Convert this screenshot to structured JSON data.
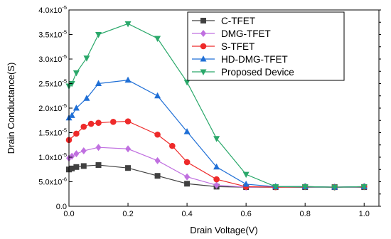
{
  "chart_data": {
    "type": "line",
    "title": "",
    "xlabel": "Drain Voltage(V)",
    "ylabel": "Drain Conductance(S)",
    "xlim": [
      0.0,
      1.05
    ],
    "ylim": [
      0.0,
      4e-05
    ],
    "grid": false,
    "legend_position": "top-right",
    "x_ticks": [
      {
        "value": 0.0,
        "label": "0.0"
      },
      {
        "value": 0.2,
        "label": "0.2"
      },
      {
        "value": 0.4,
        "label": "0.4"
      },
      {
        "value": 0.6,
        "label": "0.6"
      },
      {
        "value": 0.8,
        "label": "0.8"
      },
      {
        "value": 1.0,
        "label": "1.0"
      }
    ],
    "y_ticks": [
      {
        "value": 0.0,
        "mantissa": "0.0",
        "exp": ""
      },
      {
        "value": 5e-06,
        "mantissa": "5.0x10",
        "exp": "-6"
      },
      {
        "value": 1e-05,
        "mantissa": "1.0x10",
        "exp": "-5"
      },
      {
        "value": 1.5e-05,
        "mantissa": "1.5x10",
        "exp": "-5"
      },
      {
        "value": 2e-05,
        "mantissa": "2.0x10",
        "exp": "-5"
      },
      {
        "value": 2.5e-05,
        "mantissa": "2.5x10",
        "exp": "-5"
      },
      {
        "value": 3e-05,
        "mantissa": "3.0x10",
        "exp": "-5"
      },
      {
        "value": 3.5e-05,
        "mantissa": "3.5x10",
        "exp": "-5"
      },
      {
        "value": 4e-05,
        "mantissa": "4.0x10",
        "exp": "-5"
      }
    ],
    "series": [
      {
        "name": "C-TFET",
        "color": "#404040",
        "marker": "square",
        "x": [
          0.0,
          0.01,
          0.025,
          0.05,
          0.1,
          0.2,
          0.3,
          0.4,
          0.5,
          0.6,
          0.7,
          0.8,
          0.9,
          1.0
        ],
        "y": [
          7.5e-06,
          7.7e-06,
          8e-06,
          8.2e-06,
          8.4e-06,
          7.8e-06,
          6.2e-06,
          4.6e-06,
          4e-06,
          3.9e-06,
          3.9e-06,
          3.9e-06,
          3.9e-06,
          3.9e-06
        ]
      },
      {
        "name": "DMG-TFET",
        "color": "#c070e0",
        "marker": "diamond",
        "x": [
          0.0,
          0.01,
          0.025,
          0.05,
          0.1,
          0.2,
          0.3,
          0.4,
          0.5,
          0.6,
          0.7,
          0.8,
          0.9,
          1.0
        ],
        "y": [
          9.8e-06,
          1.02e-05,
          1.07e-05,
          1.13e-05,
          1.2e-05,
          1.17e-05,
          9.3e-06,
          6e-06,
          4.3e-06,
          3.9e-06,
          4e-06,
          4e-06,
          3.9e-06,
          4e-06
        ]
      },
      {
        "name": "S-TFET",
        "color": "#ee2a2a",
        "marker": "circle",
        "x": [
          0.0,
          0.025,
          0.05,
          0.075,
          0.1,
          0.15,
          0.2,
          0.3,
          0.35,
          0.4,
          0.5,
          0.6,
          0.7,
          0.8,
          0.9,
          1.0
        ],
        "y": [
          1.35e-05,
          1.48e-05,
          1.62e-05,
          1.68e-05,
          1.7e-05,
          1.72e-05,
          1.73e-05,
          1.46e-05,
          1.23e-05,
          9e-06,
          5.5e-06,
          4e-06,
          3.9e-06,
          4e-06,
          3.9e-06,
          4e-06
        ]
      },
      {
        "name": "HD-DMG-TFET",
        "color": "#1f6fd6",
        "marker": "triangle-up",
        "x": [
          0.0,
          0.01,
          0.025,
          0.06,
          0.1,
          0.2,
          0.3,
          0.4,
          0.5,
          0.6,
          0.7,
          0.8,
          0.9,
          1.0
        ],
        "y": [
          1.8e-05,
          1.85e-05,
          2e-05,
          2.2e-05,
          2.5e-05,
          2.57e-05,
          2.25e-05,
          1.52e-05,
          8e-06,
          4.5e-06,
          4e-06,
          4e-06,
          3.9e-06,
          4e-06
        ]
      },
      {
        "name": "Proposed Device",
        "color": "#2aa86a",
        "marker": "triangle-down",
        "x": [
          0.0,
          0.01,
          0.025,
          0.06,
          0.1,
          0.2,
          0.3,
          0.4,
          0.5,
          0.6,
          0.7,
          0.8,
          0.9,
          1.0
        ],
        "y": [
          2.45e-05,
          2.5e-05,
          2.72e-05,
          3.02e-05,
          3.5e-05,
          3.72e-05,
          3.42e-05,
          2.53e-05,
          1.38e-05,
          6.5e-06,
          4e-06,
          4e-06,
          3.9e-06,
          4e-06
        ]
      }
    ]
  }
}
